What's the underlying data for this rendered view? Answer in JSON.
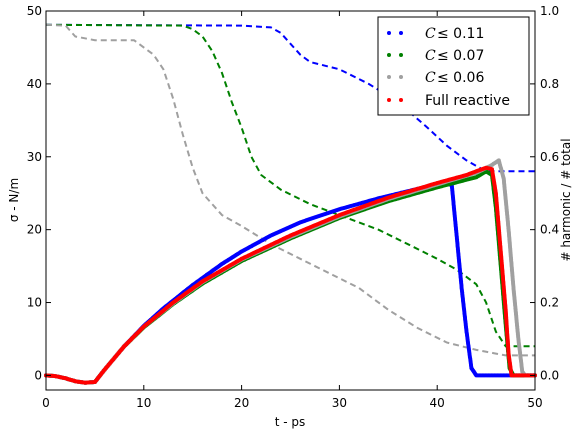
{
  "chart_data": {
    "type": "scatter",
    "xlabel": "t - ps",
    "ylabel": "σ - N/m",
    "ylabel_right": "# harmonic / # total",
    "xlim": [
      0,
      50
    ],
    "ylim": [
      -2,
      50
    ],
    "ylim_right": [
      -0.04,
      1.0
    ],
    "x_ticks": [
      "0",
      "10",
      "20",
      "30",
      "40",
      "50"
    ],
    "y_ticks": [
      "0",
      "10",
      "20",
      "30",
      "40",
      "50"
    ],
    "y_ticks_right": [
      "0.0",
      "0.2",
      "0.4",
      "0.6",
      "0.8",
      "1.0"
    ],
    "legend_position": "top-right",
    "legend": [
      {
        "symbol": "C",
        "text": "≤ 0.11",
        "color": "#0000ff"
      },
      {
        "symbol": "C",
        "text": "≤ 0.07",
        "color": "#008000"
      },
      {
        "symbol": "C",
        "text": "≤ 0.06",
        "color": "#a0a0a0"
      },
      {
        "symbol": "",
        "text": "Full reactive",
        "color": "#ff0000"
      }
    ],
    "series": [
      {
        "color": "#0000ff",
        "axis": "left",
        "style": "dots",
        "points": [
          [
            0,
            0
          ],
          [
            1,
            -0.1
          ],
          [
            2,
            -0.4
          ],
          [
            3,
            -0.8
          ],
          [
            4,
            -1
          ],
          [
            5,
            -0.9
          ],
          [
            6,
            0.8
          ],
          [
            8,
            4
          ],
          [
            10,
            6.8
          ],
          [
            12,
            9.2
          ],
          [
            15,
            12.4
          ],
          [
            18,
            15.3
          ],
          [
            20,
            17
          ],
          [
            23,
            19.2
          ],
          [
            26,
            21
          ],
          [
            30,
            22.8
          ],
          [
            34,
            24.3
          ],
          [
            38,
            25.6
          ],
          [
            41,
            26.6
          ],
          [
            41.5,
            26
          ],
          [
            42,
            19
          ],
          [
            42.5,
            12
          ],
          [
            43,
            6
          ],
          [
            43.5,
            1
          ],
          [
            44,
            0
          ],
          [
            46,
            0
          ],
          [
            48,
            0
          ],
          [
            50,
            0
          ]
        ]
      },
      {
        "color": "#008000",
        "axis": "left",
        "style": "dots",
        "points": [
          [
            0,
            0
          ],
          [
            1,
            -0.1
          ],
          [
            2,
            -0.4
          ],
          [
            3,
            -0.8
          ],
          [
            4,
            -1
          ],
          [
            5,
            -0.9
          ],
          [
            6,
            0.8
          ],
          [
            8,
            4
          ],
          [
            10,
            6.6
          ],
          [
            13,
            9.8
          ],
          [
            16,
            12.6
          ],
          [
            20,
            15.7
          ],
          [
            25,
            18.8
          ],
          [
            30,
            21.6
          ],
          [
            35,
            23.9
          ],
          [
            40,
            25.8
          ],
          [
            44,
            27.2
          ],
          [
            45,
            28
          ],
          [
            45.6,
            27.5
          ],
          [
            46,
            23
          ],
          [
            46.5,
            15
          ],
          [
            47,
            7
          ],
          [
            47.4,
            1
          ],
          [
            47.8,
            0
          ],
          [
            50,
            0
          ]
        ]
      },
      {
        "color": "#a0a0a0",
        "axis": "left",
        "style": "dots",
        "points": [
          [
            0,
            0
          ],
          [
            1,
            -0.1
          ],
          [
            2,
            -0.4
          ],
          [
            3,
            -0.8
          ],
          [
            4,
            -1
          ],
          [
            5,
            -0.9
          ],
          [
            6,
            0.8
          ],
          [
            8,
            4
          ],
          [
            10,
            6.7
          ],
          [
            13,
            9.9
          ],
          [
            16,
            12.8
          ],
          [
            20,
            15.9
          ],
          [
            25,
            19
          ],
          [
            30,
            21.8
          ],
          [
            35,
            24.2
          ],
          [
            40,
            26.2
          ],
          [
            44,
            27.8
          ],
          [
            45.5,
            28.8
          ],
          [
            46.3,
            29.5
          ],
          [
            46.8,
            27
          ],
          [
            47.3,
            20
          ],
          [
            47.8,
            12
          ],
          [
            48.3,
            5
          ],
          [
            48.7,
            0.5
          ],
          [
            49,
            0
          ],
          [
            50,
            0
          ]
        ]
      },
      {
        "color": "#ff0000",
        "axis": "left",
        "style": "dots",
        "points": [
          [
            0,
            0
          ],
          [
            1,
            -0.1
          ],
          [
            2,
            -0.4
          ],
          [
            3,
            -0.8
          ],
          [
            4,
            -1
          ],
          [
            5,
            -0.9
          ],
          [
            6,
            0.8
          ],
          [
            8,
            4
          ],
          [
            10,
            6.7
          ],
          [
            13,
            10
          ],
          [
            16,
            12.9
          ],
          [
            20,
            16
          ],
          [
            25,
            19.2
          ],
          [
            30,
            22
          ],
          [
            35,
            24.4
          ],
          [
            40,
            26.4
          ],
          [
            43,
            27.5
          ],
          [
            45,
            28.5
          ],
          [
            45.6,
            28.3
          ],
          [
            46,
            25
          ],
          [
            46.5,
            17
          ],
          [
            47,
            9
          ],
          [
            47.3,
            3
          ],
          [
            47.6,
            0
          ],
          [
            50,
            0
          ]
        ]
      },
      {
        "color": "#0000ff",
        "axis": "right",
        "style": "dashed",
        "points": [
          [
            0,
            0.962
          ],
          [
            20,
            0.96
          ],
          [
            23,
            0.955
          ],
          [
            24,
            0.94
          ],
          [
            25,
            0.91
          ],
          [
            26,
            0.88
          ],
          [
            27,
            0.86
          ],
          [
            30,
            0.84
          ],
          [
            33,
            0.8
          ],
          [
            36,
            0.75
          ],
          [
            39,
            0.68
          ],
          [
            41,
            0.63
          ],
          [
            43,
            0.59
          ],
          [
            44,
            0.575
          ],
          [
            45,
            0.56
          ],
          [
            50,
            0.56
          ]
        ]
      },
      {
        "color": "#008000",
        "axis": "right",
        "style": "dashed",
        "points": [
          [
            0,
            0.962
          ],
          [
            14,
            0.96
          ],
          [
            15,
            0.95
          ],
          [
            16,
            0.93
          ],
          [
            17,
            0.89
          ],
          [
            18,
            0.83
          ],
          [
            19,
            0.75
          ],
          [
            20,
            0.68
          ],
          [
            21,
            0.6
          ],
          [
            22,
            0.55
          ],
          [
            24,
            0.51
          ],
          [
            27,
            0.47
          ],
          [
            30,
            0.44
          ],
          [
            34,
            0.4
          ],
          [
            37,
            0.36
          ],
          [
            40,
            0.32
          ],
          [
            42,
            0.29
          ],
          [
            44,
            0.25
          ],
          [
            45,
            0.2
          ],
          [
            46,
            0.12
          ],
          [
            47,
            0.08
          ],
          [
            50,
            0.08
          ]
        ]
      },
      {
        "color": "#a0a0a0",
        "axis": "right",
        "style": "dashed",
        "points": [
          [
            0,
            0.962
          ],
          [
            2,
            0.96
          ],
          [
            3,
            0.93
          ],
          [
            5,
            0.92
          ],
          [
            9,
            0.92
          ],
          [
            11,
            0.88
          ],
          [
            12,
            0.84
          ],
          [
            13,
            0.76
          ],
          [
            14,
            0.66
          ],
          [
            15,
            0.57
          ],
          [
            16,
            0.5
          ],
          [
            18,
            0.44
          ],
          [
            20,
            0.41
          ],
          [
            23,
            0.36
          ],
          [
            26,
            0.32
          ],
          [
            29,
            0.28
          ],
          [
            32,
            0.24
          ],
          [
            35,
            0.18
          ],
          [
            38,
            0.13
          ],
          [
            41,
            0.09
          ],
          [
            44,
            0.07
          ],
          [
            46,
            0.06
          ],
          [
            47,
            0.055
          ],
          [
            50,
            0.055
          ]
        ]
      }
    ]
  }
}
